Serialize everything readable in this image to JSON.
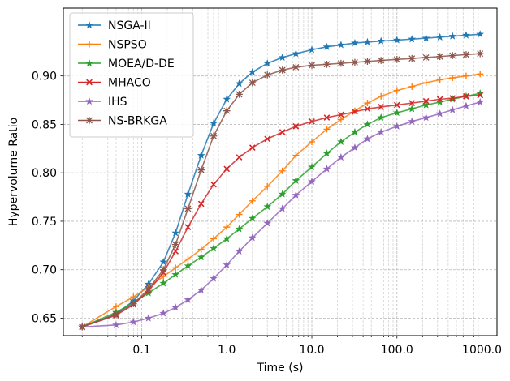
{
  "chart_data": {
    "type": "line",
    "title": "",
    "xlabel": "Time (s)",
    "ylabel": "Hypervolume Ratio",
    "xscale": "log",
    "xlim": [
      0.012,
      1500
    ],
    "ylim": [
      0.632,
      0.97
    ],
    "x_ticks": [
      0.1,
      1.0,
      10.0,
      100.0,
      1000.0
    ],
    "x_tick_labels": [
      "0.1",
      "1.0",
      "10.0",
      "100.0",
      "1000.0"
    ],
    "y_ticks": [
      0.65,
      0.7,
      0.75,
      0.8,
      0.85,
      0.9
    ],
    "y_tick_labels": [
      "0.65",
      "0.70",
      "0.75",
      "0.80",
      "0.85",
      "0.90"
    ],
    "grid": true,
    "legend_position": "top-left",
    "x": [
      0.02,
      0.05,
      0.08,
      0.12,
      0.18,
      0.25,
      0.35,
      0.5,
      0.7,
      1.0,
      1.4,
      2.0,
      3.0,
      4.5,
      6.5,
      10,
      15,
      22,
      32,
      45,
      65,
      100,
      150,
      220,
      320,
      450,
      650,
      950
    ],
    "series": [
      {
        "name": "NSGA-II",
        "color": "#1f77b4",
        "marker": "star",
        "values": [
          0.641,
          0.654,
          0.668,
          0.685,
          0.708,
          0.738,
          0.778,
          0.818,
          0.851,
          0.876,
          0.892,
          0.904,
          0.913,
          0.919,
          0.923,
          0.927,
          0.93,
          0.932,
          0.934,
          0.935,
          0.936,
          0.937,
          0.938,
          0.939,
          0.94,
          0.941,
          0.942,
          0.943
        ]
      },
      {
        "name": "NSPSO",
        "color": "#ff7f0e",
        "marker": "plus",
        "values": [
          0.641,
          0.662,
          0.672,
          0.682,
          0.693,
          0.702,
          0.711,
          0.721,
          0.732,
          0.744,
          0.757,
          0.771,
          0.786,
          0.802,
          0.818,
          0.832,
          0.845,
          0.855,
          0.864,
          0.872,
          0.879,
          0.885,
          0.889,
          0.893,
          0.896,
          0.898,
          0.9,
          0.902
        ]
      },
      {
        "name": "MOEA/D-DE",
        "color": "#2ca02c",
        "marker": "star",
        "values": [
          0.641,
          0.656,
          0.666,
          0.676,
          0.686,
          0.695,
          0.704,
          0.713,
          0.722,
          0.732,
          0.742,
          0.753,
          0.765,
          0.778,
          0.792,
          0.806,
          0.82,
          0.832,
          0.842,
          0.85,
          0.857,
          0.862,
          0.866,
          0.87,
          0.873,
          0.876,
          0.879,
          0.882
        ]
      },
      {
        "name": "MHACO",
        "color": "#d62728",
        "marker": "x",
        "values": [
          0.641,
          0.653,
          0.664,
          0.678,
          0.697,
          0.719,
          0.744,
          0.768,
          0.788,
          0.804,
          0.816,
          0.826,
          0.835,
          0.842,
          0.848,
          0.853,
          0.857,
          0.86,
          0.863,
          0.866,
          0.868,
          0.87,
          0.872,
          0.874,
          0.876,
          0.877,
          0.879,
          0.88
        ]
      },
      {
        "name": "IHS",
        "color": "#9467bd",
        "marker": "star",
        "values": [
          0.641,
          0.643,
          0.646,
          0.65,
          0.655,
          0.661,
          0.669,
          0.679,
          0.691,
          0.705,
          0.719,
          0.733,
          0.748,
          0.763,
          0.777,
          0.791,
          0.804,
          0.816,
          0.826,
          0.835,
          0.842,
          0.848,
          0.853,
          0.857,
          0.861,
          0.865,
          0.869,
          0.873
        ]
      },
      {
        "name": "NS-BRKGA",
        "color": "#8c564b",
        "marker": "asterisk",
        "values": [
          0.641,
          0.654,
          0.665,
          0.68,
          0.7,
          0.726,
          0.763,
          0.803,
          0.838,
          0.864,
          0.881,
          0.893,
          0.901,
          0.906,
          0.909,
          0.911,
          0.912,
          0.913,
          0.914,
          0.915,
          0.916,
          0.917,
          0.918,
          0.919,
          0.92,
          0.921,
          0.922,
          0.923
        ]
      }
    ]
  }
}
